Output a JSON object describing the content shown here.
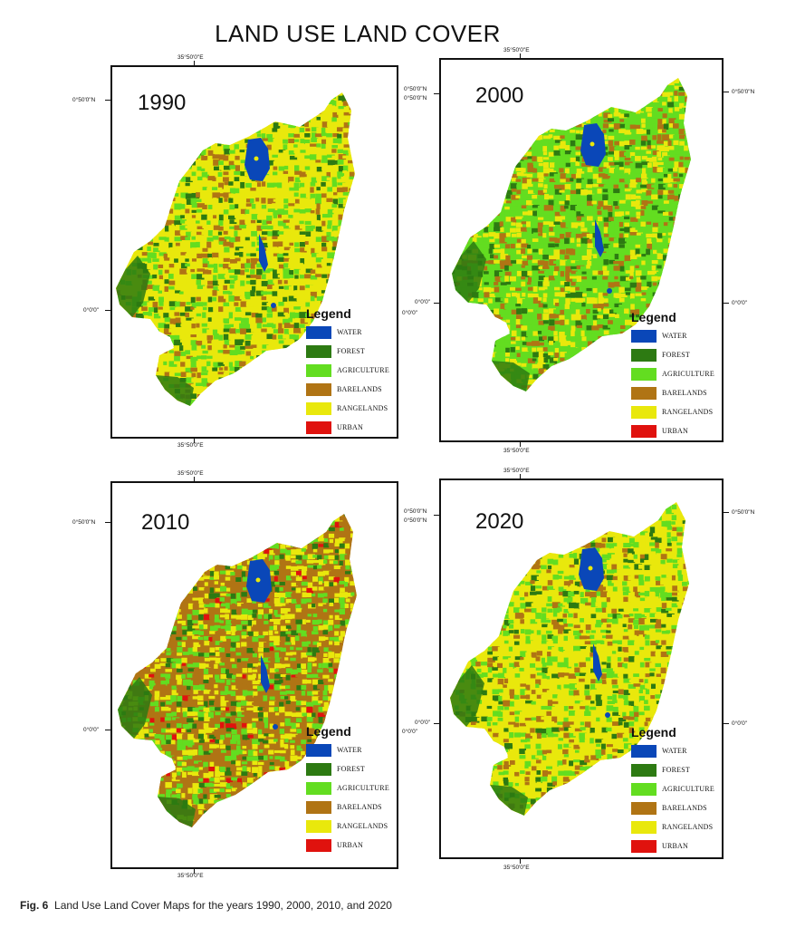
{
  "title": "LAND USE LAND COVER",
  "caption": {
    "label": "Fig. 6",
    "text": "Land Use Land Cover Maps for the years 1990, 2000, 2010, and 2020"
  },
  "colors": {
    "water": "#0a47b8",
    "forest": "#2d7a12",
    "agriculture": "#63dd20",
    "barelands": "#b07414",
    "rangelands": "#e9e80c",
    "urban": "#e0120e"
  },
  "legend": {
    "title": "Legend",
    "items": [
      {
        "key": "water",
        "label": "WATER"
      },
      {
        "key": "forest",
        "label": "FOREST"
      },
      {
        "key": "agriculture",
        "label": "AGRICULTURE"
      },
      {
        "key": "barelands",
        "label": "BARELANDS"
      },
      {
        "key": "rangelands",
        "label": "RANGELANDS"
      },
      {
        "key": "urban",
        "label": "URBAN"
      }
    ]
  },
  "coordinates": {
    "lon": "35°50'0\"E",
    "lat_north": "0°50'0\"N",
    "lat_zero": "0°0'0\""
  },
  "maps": [
    {
      "year": "1990",
      "dominant": "rangelands"
    },
    {
      "year": "2000",
      "dominant": "agriculture"
    },
    {
      "year": "2010",
      "dominant": "barelands"
    },
    {
      "year": "2020",
      "dominant": "rangelands"
    }
  ]
}
